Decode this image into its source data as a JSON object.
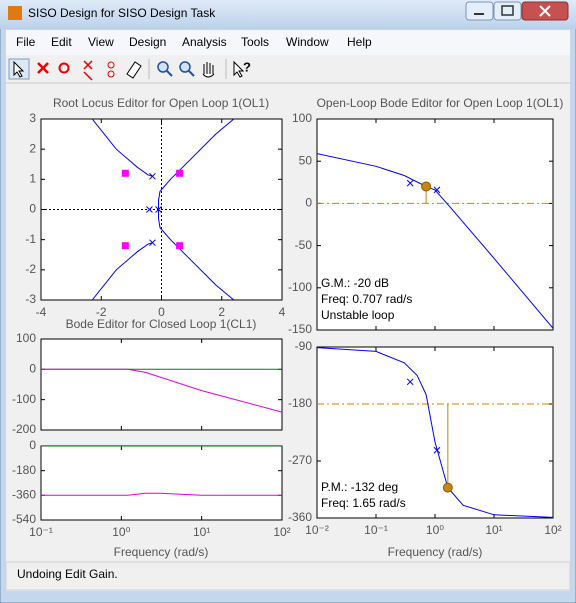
{
  "window": {
    "title": "SISO Design for SISO Design Task",
    "menu": [
      "File",
      "Edit",
      "View",
      "Design",
      "Analysis",
      "Tools",
      "Window",
      "Help"
    ],
    "status": "Undoing Edit Gain."
  },
  "root_locus": {
    "title": "Root Locus Editor for Open Loop 1(OL1)",
    "xlim": [
      -4,
      4
    ],
    "xticks": [
      -4,
      -2,
      0,
      2,
      4
    ],
    "ylim": [
      -3,
      3
    ],
    "yticks": [
      -3,
      -2,
      -1,
      0,
      1,
      2,
      3
    ],
    "color": "#0000ff",
    "branches": [
      {
        "x": [
          -2.3,
          -1.5,
          -0.8,
          -0.45,
          -0.3
        ],
        "values": [
          3,
          2,
          1.4,
          1.15,
          1.1
        ]
      },
      {
        "x": [
          -2.3,
          -1.5,
          -0.8,
          -0.45,
          -0.3
        ],
        "values": [
          -3,
          -2,
          -1.4,
          -1.15,
          -1.1
        ]
      },
      {
        "x": [
          -0.1,
          -0.1,
          -0.05,
          0.3,
          0.8,
          1.8,
          2.4
        ],
        "values": [
          0,
          0.3,
          0.6,
          1,
          1.5,
          2.5,
          3
        ]
      },
      {
        "x": [
          -0.1,
          -0.1,
          -0.05,
          0.3,
          0.8,
          1.8,
          2.4
        ],
        "values": [
          0,
          -0.3,
          -0.6,
          -1,
          -1.5,
          -2.5,
          -3
        ]
      }
    ],
    "open_loop_poles": {
      "x": [
        -0.3,
        -0.3,
        -0.4,
        -0.1
      ],
      "values": [
        1.1,
        -1.1,
        0,
        0
      ]
    },
    "closed_loop_poles": {
      "x": [
        -1.2,
        0.6,
        -1.2,
        0.6
      ],
      "values": [
        1.2,
        1.2,
        -1.2,
        -1.2
      ],
      "color": "#ff00ff"
    }
  },
  "open_loop_bode": {
    "title": "Open-Loop Bode Editor for Open Loop 1(OL1)",
    "xlabel": "Frequency (rad/s)",
    "log_x": true,
    "xlim": [
      0.01,
      100
    ],
    "xticks": [
      {
        "value": 0.01,
        "label": "10⁻²"
      },
      {
        "value": 0.1,
        "label": "10⁻¹"
      },
      {
        "value": 1,
        "label": "10⁰"
      },
      {
        "value": 10,
        "label": "10¹"
      },
      {
        "value": 100,
        "label": "10²"
      }
    ],
    "magnitude": {
      "ylim": [
        -150,
        100
      ],
      "yticks": [
        -150,
        -100,
        -50,
        0,
        50,
        100
      ],
      "series": [
        {
          "color": "#0000ff",
          "x": [
            0.01,
            0.1,
            0.3,
            0.707,
            1,
            2,
            10,
            100
          ],
          "values": [
            59,
            44,
            33,
            20,
            16,
            -8,
            -65,
            -148
          ]
        }
      ],
      "pole_markers": {
        "x": [
          0.38,
          1.08
        ],
        "values": [
          24,
          16
        ],
        "color": "#0000ff"
      },
      "margin_point": {
        "x": [
          0.707
        ],
        "values": [
          20
        ],
        "color": "#c8860a"
      },
      "reference": 0,
      "annotations": [
        "G.M.: -20 dB",
        "Freq: 0.707 rad/s",
        "Unstable loop"
      ]
    },
    "phase": {
      "ylim": [
        -360,
        -90
      ],
      "yticks": [
        -360,
        -270,
        -180,
        -90
      ],
      "series": [
        {
          "color": "#0000ff",
          "x": [
            0.01,
            0.1,
            0.3,
            0.5,
            0.707,
            1,
            1.65,
            3,
            10,
            100
          ],
          "values": [
            -91,
            -97,
            -115,
            -135,
            -165,
            -240,
            -312,
            -340,
            -355,
            -359
          ]
        }
      ],
      "pole_markers": {
        "x": [
          0.38,
          1.08
        ],
        "values": [
          -145,
          -253
        ],
        "color": "#0000ff"
      },
      "margin_point": {
        "x": [
          1.65
        ],
        "values": [
          -312
        ],
        "color": "#c8860a"
      },
      "reference": -180,
      "annotations": [
        "P.M.: -132 deg",
        "Freq: 1.65 rad/s"
      ]
    }
  },
  "closed_loop_bode": {
    "title": "Bode Editor for Closed Loop 1(CL1)",
    "xlabel": "Frequency (rad/s)",
    "log_x": true,
    "xlim": [
      0.1,
      100
    ],
    "xticks": [
      {
        "value": 0.1,
        "label": "10⁻¹"
      },
      {
        "value": 1,
        "label": "10⁰"
      },
      {
        "value": 10,
        "label": "10¹"
      },
      {
        "value": 100,
        "label": "10²"
      }
    ],
    "magnitude": {
      "ylim": [
        -200,
        100
      ],
      "yticks": [
        -200,
        -100,
        0,
        100
      ],
      "series": [
        {
          "color": "#008000",
          "x": [
            0.1,
            100
          ],
          "values": [
            0,
            0
          ]
        },
        {
          "color": "#e000e0",
          "x": [
            0.1,
            1.2,
            2,
            10,
            100
          ],
          "values": [
            0,
            0,
            -10,
            -70,
            -141
          ]
        }
      ]
    },
    "phase": {
      "ylim": [
        -540,
        0
      ],
      "yticks": [
        -540,
        -360,
        -180,
        0
      ],
      "series": [
        {
          "color": "#008000",
          "x": [
            0.1,
            100
          ],
          "values": [
            0,
            0
          ]
        },
        {
          "color": "#e000e0",
          "x": [
            0.1,
            1.2,
            2,
            3,
            10,
            100
          ],
          "values": [
            -360,
            -360,
            -345,
            -345,
            -360,
            -360
          ]
        }
      ]
    }
  }
}
